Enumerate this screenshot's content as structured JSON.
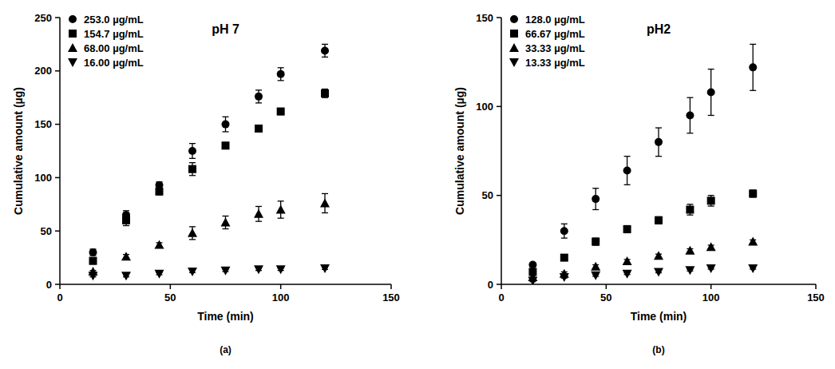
{
  "chart_data": [
    {
      "type": "scatter",
      "title": "pH 7",
      "label": "(a)",
      "x_label": "Time (min)",
      "y_label": "Cumulative amount (µg)",
      "xlim": [
        0,
        150
      ],
      "xticks": [
        0,
        50,
        100,
        150
      ],
      "ylim": [
        0,
        250
      ],
      "yticks": [
        0,
        50,
        100,
        150,
        200,
        250
      ],
      "legend": "upper left",
      "grid": false,
      "x": [
        15,
        30,
        45,
        60,
        75,
        90,
        100,
        120
      ],
      "series": [
        {
          "name": "253.0 µg/mL",
          "color": "#000000",
          "marker": "circle",
          "values": [
            30,
            65,
            93,
            125,
            150,
            176,
            197,
            219
          ],
          "errors": [
            3,
            4,
            3,
            7,
            7,
            6,
            6,
            6
          ]
        },
        {
          "name": "154.7 µg/mL",
          "color": "#000000",
          "marker": "square",
          "values": [
            22,
            60,
            87,
            108,
            130,
            146,
            162,
            179
          ],
          "errors": [
            3,
            5,
            3,
            6,
            3,
            2,
            3,
            4
          ]
        },
        {
          "name": "68.00 µg/mL",
          "color": "#000000",
          "marker": "triangle",
          "values": [
            12,
            26,
            37,
            48,
            58,
            66,
            70,
            76
          ],
          "errors": [
            1,
            2,
            2,
            6,
            6,
            7,
            8,
            9
          ]
        },
        {
          "name": "16.00 µg/mL",
          "color": "#000000",
          "marker": "triangle-down",
          "values": [
            8,
            8,
            10,
            12,
            13,
            14,
            14,
            15
          ],
          "errors": [
            1,
            1,
            1,
            1,
            1,
            1,
            1,
            1
          ]
        }
      ]
    },
    {
      "type": "scatter",
      "title": "pH2",
      "label": "(b)",
      "x_label": "Time (min)",
      "y_label": "Cumulative amount (µg)",
      "xlim": [
        0,
        150
      ],
      "xticks": [
        0,
        50,
        100,
        150
      ],
      "ylim": [
        0,
        150
      ],
      "yticks": [
        0,
        50,
        100,
        150
      ],
      "legend": "upper left",
      "grid": false,
      "x": [
        15,
        30,
        45,
        60,
        75,
        90,
        100,
        120
      ],
      "series": [
        {
          "name": "128.0 µg/mL",
          "color": "#000000",
          "marker": "circle",
          "values": [
            11,
            30,
            48,
            64,
            80,
            95,
            108,
            122
          ],
          "errors": [
            1,
            4,
            6,
            8,
            8,
            10,
            13,
            13
          ]
        },
        {
          "name": "66.67 µg/mL",
          "color": "#000000",
          "marker": "square",
          "values": [
            7,
            15,
            24,
            31,
            36,
            42,
            47,
            51
          ],
          "errors": [
            1,
            1,
            2,
            2,
            2,
            3,
            3,
            2
          ]
        },
        {
          "name": "33.33 µg/mL",
          "color": "#000000",
          "marker": "triangle",
          "values": [
            4,
            6,
            10,
            13,
            16,
            19,
            21,
            24
          ],
          "errors": [
            1,
            1,
            1,
            1,
            1,
            1,
            1,
            1
          ]
        },
        {
          "name": "13.33 µg/mL",
          "color": "#000000",
          "marker": "triangle-down",
          "values": [
            2,
            4,
            5,
            6,
            7,
            8,
            9,
            9
          ],
          "errors": [
            0.5,
            0.5,
            0.5,
            0.5,
            0.5,
            0.5,
            0.5,
            0.5
          ]
        }
      ]
    }
  ]
}
